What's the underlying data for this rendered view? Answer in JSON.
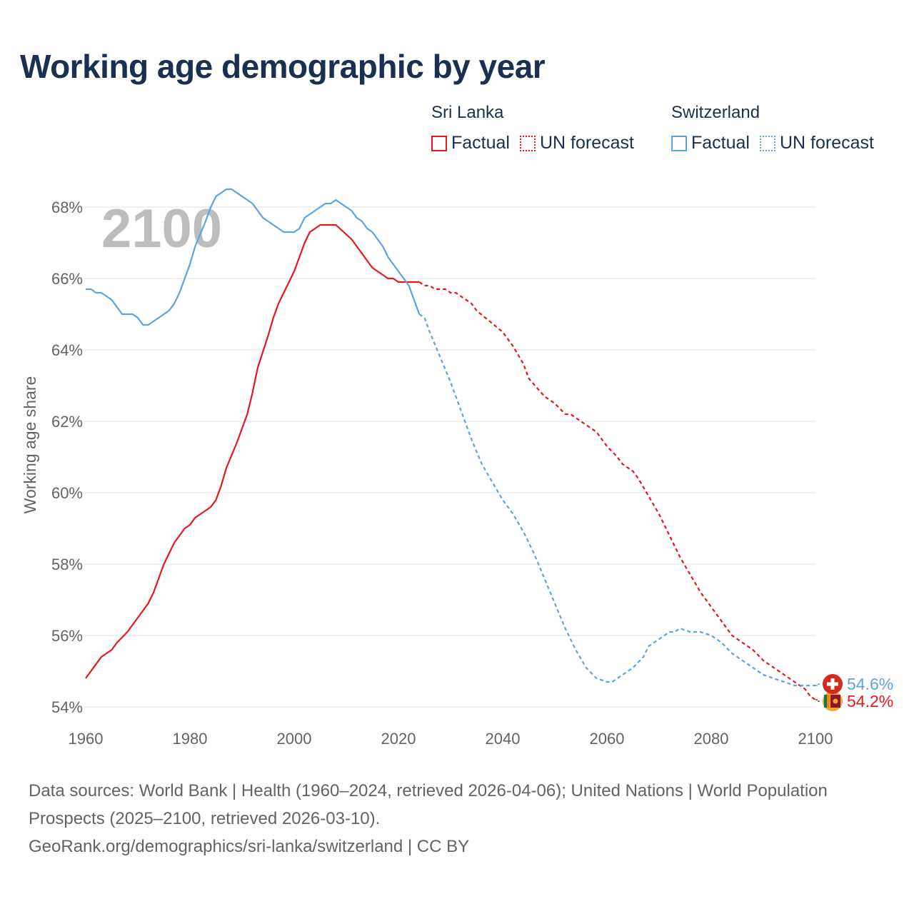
{
  "title": "Working age demographic by year",
  "legend": {
    "groups": [
      {
        "name": "Sri Lanka",
        "factual_label": "Factual",
        "forecast_label": "UN forecast"
      },
      {
        "name": "Switzerland",
        "factual_label": "Factual",
        "forecast_label": "UN forecast"
      }
    ]
  },
  "footer": {
    "sources": "Data sources: World Bank | Health (1960–2024, retrieved 2026-04-06); United Nations | World Population Prospects (2025–2100, retrieved 2026-03-10).",
    "link": "GeoRank.org/demographics/sri-lanka/switzerland | CC BY"
  },
  "colors": {
    "sri_lanka": "#e8171d",
    "switzerland": "#5ea3de",
    "title": "#1b3050",
    "grid": "#e3e3e3",
    "axis_text": "#636363",
    "year_watermark": "#bdbdbd"
  },
  "chart_data": {
    "type": "line",
    "year_label": "2100",
    "ylabel": "Working age share",
    "xlim": [
      1960,
      2100
    ],
    "ylim": [
      53,
      69
    ],
    "x_ticks": [
      "1960",
      "1980",
      "2000",
      "2020",
      "2040",
      "2060",
      "2080",
      "2100"
    ],
    "y_ticks": [
      "54%",
      "56%",
      "58%",
      "60%",
      "62%",
      "64%",
      "66%",
      "68%"
    ],
    "forecast_start_year": 2024,
    "series": [
      {
        "name": "Sri Lanka",
        "color": "#e8171d",
        "end_label": "54.2%",
        "end_icon": "sri-lanka-flag-icon",
        "points": [
          [
            1960,
            54.8
          ],
          [
            1963,
            55.4
          ],
          [
            1965,
            55.6
          ],
          [
            1966,
            55.8
          ],
          [
            1968,
            56.1
          ],
          [
            1970,
            56.5
          ],
          [
            1972,
            56.9
          ],
          [
            1973,
            57.2
          ],
          [
            1975,
            58.0
          ],
          [
            1977,
            58.6
          ],
          [
            1979,
            59.0
          ],
          [
            1980,
            59.1
          ],
          [
            1981,
            59.3
          ],
          [
            1983,
            59.5
          ],
          [
            1984,
            59.6
          ],
          [
            1985,
            59.8
          ],
          [
            1986,
            60.2
          ],
          [
            1987,
            60.7
          ],
          [
            1989,
            61.4
          ],
          [
            1990,
            61.8
          ],
          [
            1991,
            62.2
          ],
          [
            1992,
            62.8
          ],
          [
            1993,
            63.5
          ],
          [
            1995,
            64.4
          ],
          [
            1996,
            64.9
          ],
          [
            1997,
            65.3
          ],
          [
            1999,
            65.9
          ],
          [
            2000,
            66.2
          ],
          [
            2001,
            66.6
          ],
          [
            2002,
            67.0
          ],
          [
            2003,
            67.3
          ],
          [
            2004,
            67.4
          ],
          [
            2005,
            67.5
          ],
          [
            2008,
            67.5
          ],
          [
            2011,
            67.1
          ],
          [
            2012,
            66.9
          ],
          [
            2015,
            66.3
          ],
          [
            2018,
            66.0
          ],
          [
            2019,
            66.0
          ],
          [
            2020,
            65.9
          ],
          [
            2024,
            65.9
          ],
          [
            2025,
            65.8
          ],
          [
            2026,
            65.8
          ],
          [
            2027,
            65.7
          ],
          [
            2029,
            65.7
          ],
          [
            2030,
            65.6
          ],
          [
            2031,
            65.6
          ],
          [
            2032,
            65.5
          ],
          [
            2034,
            65.3
          ],
          [
            2035,
            65.1
          ],
          [
            2040,
            64.5
          ],
          [
            2042,
            64.1
          ],
          [
            2044,
            63.6
          ],
          [
            2045,
            63.2
          ],
          [
            2048,
            62.7
          ],
          [
            2050,
            62.5
          ],
          [
            2052,
            62.2
          ],
          [
            2053,
            62.2
          ],
          [
            2058,
            61.7
          ],
          [
            2060,
            61.3
          ],
          [
            2062,
            61.0
          ],
          [
            2063,
            60.8
          ],
          [
            2065,
            60.6
          ],
          [
            2066,
            60.4
          ],
          [
            2068,
            59.9
          ],
          [
            2070,
            59.4
          ],
          [
            2072,
            58.8
          ],
          [
            2074,
            58.2
          ],
          [
            2076,
            57.7
          ],
          [
            2078,
            57.2
          ],
          [
            2080,
            56.8
          ],
          [
            2082,
            56.4
          ],
          [
            2084,
            56.0
          ],
          [
            2086,
            55.8
          ],
          [
            2088,
            55.6
          ],
          [
            2090,
            55.3
          ],
          [
            2092,
            55.1
          ],
          [
            2094,
            54.9
          ],
          [
            2096,
            54.7
          ],
          [
            2098,
            54.5
          ],
          [
            2099,
            54.3
          ],
          [
            2100,
            54.2
          ]
        ]
      },
      {
        "name": "Switzerland",
        "color": "#5ea3de",
        "end_label": "54.6%",
        "end_icon": "switzerland-flag-icon",
        "points": [
          [
            1960,
            65.7
          ],
          [
            1961,
            65.7
          ],
          [
            1962,
            65.6
          ],
          [
            1963,
            65.6
          ],
          [
            1965,
            65.4
          ],
          [
            1966,
            65.2
          ],
          [
            1967,
            65.0
          ],
          [
            1969,
            65.0
          ],
          [
            1970,
            64.9
          ],
          [
            1971,
            64.7
          ],
          [
            1972,
            64.7
          ],
          [
            1974,
            64.9
          ],
          [
            1976,
            65.1
          ],
          [
            1977,
            65.3
          ],
          [
            1978,
            65.6
          ],
          [
            1979,
            66.0
          ],
          [
            1980,
            66.4
          ],
          [
            1981,
            66.9
          ],
          [
            1983,
            67.6
          ],
          [
            1984,
            68.0
          ],
          [
            1985,
            68.3
          ],
          [
            1986,
            68.4
          ],
          [
            1987,
            68.5
          ],
          [
            1988,
            68.5
          ],
          [
            1990,
            68.3
          ],
          [
            1992,
            68.1
          ],
          [
            1994,
            67.7
          ],
          [
            1996,
            67.5
          ],
          [
            1998,
            67.3
          ],
          [
            2000,
            67.3
          ],
          [
            2001,
            67.4
          ],
          [
            2002,
            67.7
          ],
          [
            2005,
            68.0
          ],
          [
            2006,
            68.1
          ],
          [
            2007,
            68.1
          ],
          [
            2008,
            68.2
          ],
          [
            2009,
            68.1
          ],
          [
            2010,
            68.0
          ],
          [
            2011,
            67.9
          ],
          [
            2012,
            67.7
          ],
          [
            2013,
            67.6
          ],
          [
            2014,
            67.4
          ],
          [
            2015,
            67.3
          ],
          [
            2016,
            67.1
          ],
          [
            2017,
            66.9
          ],
          [
            2018,
            66.6
          ],
          [
            2020,
            66.2
          ],
          [
            2022,
            65.8
          ],
          [
            2023,
            65.4
          ],
          [
            2024,
            65.0
          ],
          [
            2025,
            64.9
          ],
          [
            2026,
            64.5
          ],
          [
            2028,
            63.8
          ],
          [
            2030,
            63.1
          ],
          [
            2032,
            62.3
          ],
          [
            2034,
            61.5
          ],
          [
            2036,
            60.8
          ],
          [
            2038,
            60.3
          ],
          [
            2040,
            59.8
          ],
          [
            2042,
            59.4
          ],
          [
            2044,
            58.9
          ],
          [
            2046,
            58.3
          ],
          [
            2048,
            57.6
          ],
          [
            2050,
            56.9
          ],
          [
            2052,
            56.2
          ],
          [
            2054,
            55.6
          ],
          [
            2056,
            55.1
          ],
          [
            2058,
            54.8
          ],
          [
            2060,
            54.7
          ],
          [
            2061,
            54.7
          ],
          [
            2063,
            54.9
          ],
          [
            2065,
            55.1
          ],
          [
            2067,
            55.4
          ],
          [
            2068,
            55.7
          ],
          [
            2070,
            55.9
          ],
          [
            2072,
            56.1
          ],
          [
            2073,
            56.1
          ],
          [
            2074,
            56.2
          ],
          [
            2076,
            56.1
          ],
          [
            2078,
            56.1
          ],
          [
            2080,
            56.0
          ],
          [
            2082,
            55.8
          ],
          [
            2084,
            55.5
          ],
          [
            2086,
            55.3
          ],
          [
            2088,
            55.1
          ],
          [
            2090,
            54.9
          ],
          [
            2092,
            54.8
          ],
          [
            2094,
            54.7
          ],
          [
            2096,
            54.6
          ],
          [
            2100,
            54.6
          ]
        ]
      }
    ]
  }
}
